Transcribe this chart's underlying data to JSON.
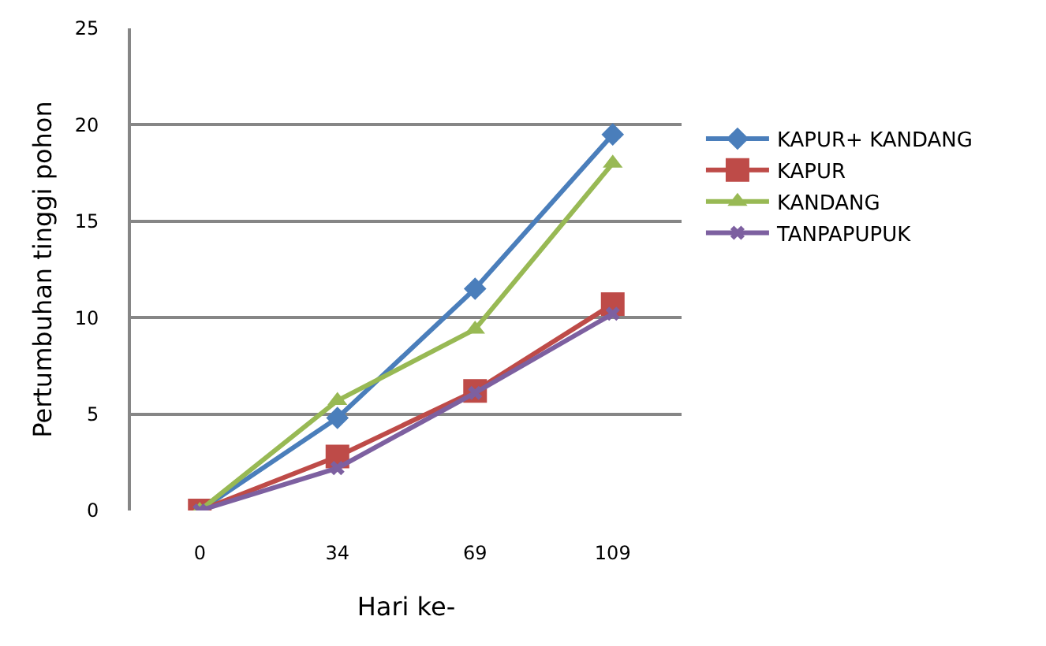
{
  "chart_data": {
    "type": "line",
    "xlabel": "Hari ke-",
    "ylabel": "Pertumbuhan tinggi pohon",
    "categories": [
      "0",
      "34",
      "69",
      "109"
    ],
    "series": [
      {
        "name": "KAPUR+ KANDANG",
        "color": "#4a7ebb",
        "marker": "diamond",
        "values": [
          0,
          4.8,
          11.5,
          19.5
        ]
      },
      {
        "name": "KAPUR",
        "color": "#be4b48",
        "marker": "square",
        "values": [
          0,
          2.8,
          6.2,
          10.7
        ]
      },
      {
        "name": "KANDANG",
        "color": "#98b954",
        "marker": "triangle",
        "values": [
          0,
          5.7,
          9.4,
          18
        ]
      },
      {
        "name": "TANPAPUPUK",
        "color": "#7d60a0",
        "marker": "cross",
        "values": [
          0,
          2.2,
          6.1,
          10.2
        ]
      }
    ],
    "ylim": [
      0,
      25
    ],
    "yticks": [
      0,
      5,
      10,
      15,
      20,
      25
    ],
    "grid": "y",
    "legend": "right"
  }
}
